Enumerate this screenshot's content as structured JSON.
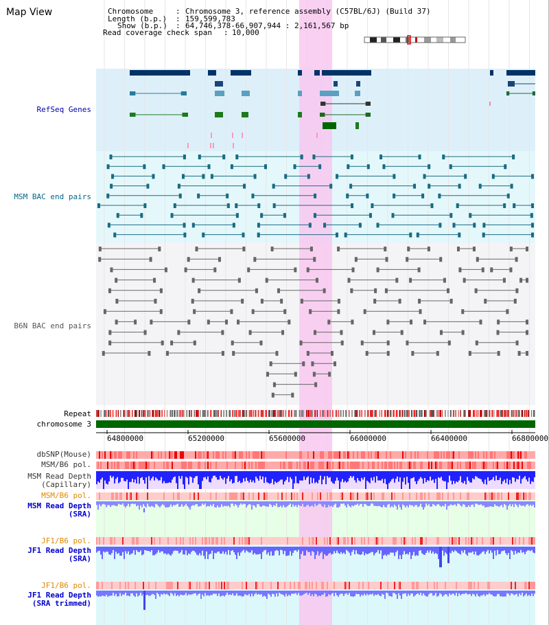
{
  "title": "Map View",
  "header": {
    "chromosome_label": "Chromosome",
    "chromosome_value": "Chromosome 3, reference assembly (C57BL/6J) (Build 37)",
    "length_label": "Length (b.p.)",
    "length_value": "159,599,783",
    "show_label": "Show (b.p.)",
    "show_value": "64,746,378-66,907,944 : 2,161,567 bp",
    "coverage_label": "Read coverage check span",
    "coverage_value": "10,000"
  },
  "tracks": {
    "refseq": "RefSeq Genes",
    "msm_bac": "MSM BAC end pairs",
    "b6n_bac": "B6N BAC end pairs",
    "repeat": "Repeat",
    "chromosome": "chromosome 3",
    "dbsnp": "dbSNP(Mouse)",
    "msm_b6_pol": "MSM/B6 pol.",
    "msm_read_depth_cap_1": "MSM Read Depth",
    "msm_read_depth_cap_2": "(Capillary)",
    "msm_b6_pol_2": "MSM/B6 pol.",
    "msm_read_depth_sra_1": "MSM Read Depth",
    "msm_read_depth_sra_2": "(SRA)",
    "jf1_b6_pol": "JF1/B6 pol.",
    "jf1_read_depth_1": "JF1 Read Depth",
    "jf1_read_depth_2": "(SRA)",
    "jf1_b6_pol_2": "JF1/B6 pol.",
    "jf1_trim_1": "JF1 Read Depth",
    "jf1_trim_2": "(SRA trimmed)"
  },
  "colors": {
    "refseq_label": "#0000aa",
    "msm_label": "#006688",
    "b6n_label": "#555555",
    "orange_label": "#dd8800",
    "blue_label": "#0000cc",
    "highlight": "#f8c8f0",
    "chromosome": "#006600"
  },
  "axis": {
    "ticks": [
      "64800000",
      "65200000",
      "65600000",
      "66000000",
      "66400000",
      "66800000"
    ]
  }
}
